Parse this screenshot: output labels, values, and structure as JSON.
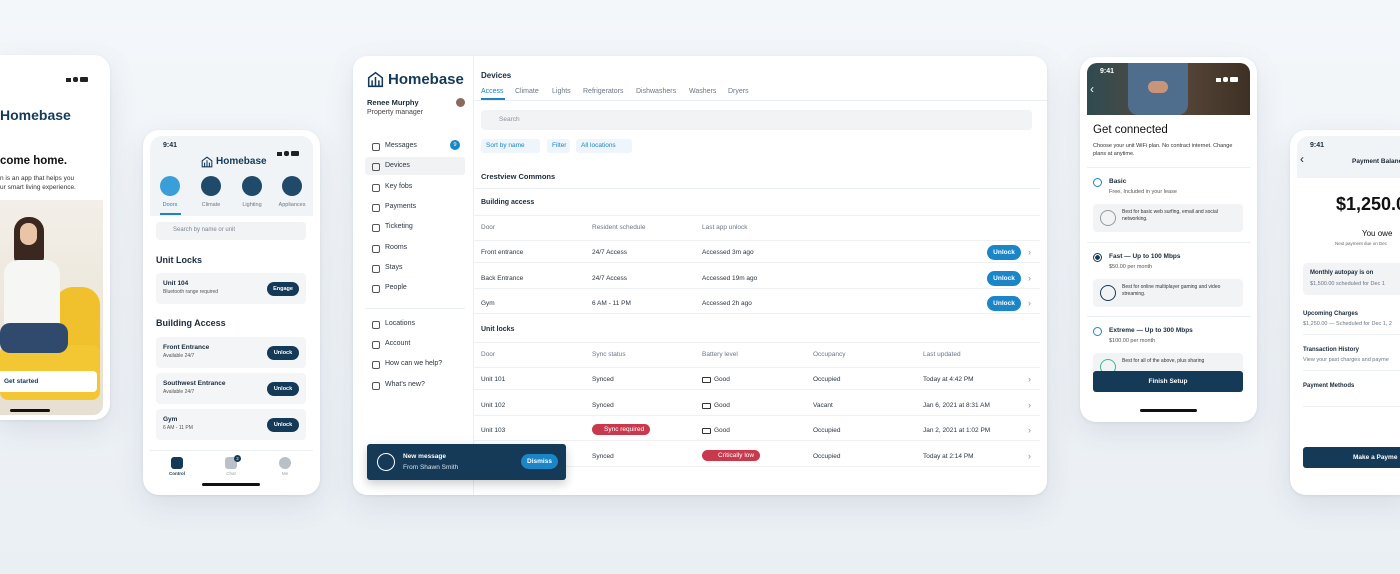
{
  "phone_intro": {
    "brand": "Homebase",
    "headline": "come home.",
    "body_lines": [
      "n is an app that helps you",
      "ur smart living experience."
    ],
    "cta": "Get started"
  },
  "phone_control": {
    "time": "9:41",
    "brand": "Homebase",
    "tabs": [
      "Doors",
      "Climate",
      "Lighting",
      "Appliances"
    ],
    "search": "Search by name or unit",
    "unit_locks_title": "Unit Locks",
    "unit_locks": [
      {
        "name": "Unit 104",
        "sub": "Bluetooth range required",
        "action": "Engage"
      }
    ],
    "building_title": "Building Access",
    "building": [
      {
        "name": "Front Entrance",
        "sub": "Available 24/7",
        "action": "Unlock"
      },
      {
        "name": "Southwest Entrance",
        "sub": "Available 24/7",
        "action": "Unlock"
      },
      {
        "name": "Gym",
        "sub": "6 AM - 11 PM",
        "action": "Unlock"
      }
    ],
    "nav": [
      "Control",
      "Chat",
      "Me"
    ],
    "chat_badge": 2
  },
  "dashboard": {
    "brand": "Homebase",
    "user": "Renee Murphy",
    "role": "Property manager",
    "nav_primary": [
      "Messages",
      "Devices",
      "Key fobs",
      "Payments",
      "Ticketing",
      "Rooms",
      "Stays",
      "People"
    ],
    "messages_badge": 9,
    "nav_secondary": [
      "Locations",
      "Account",
      "How can we help?",
      "What's new?"
    ],
    "toast": {
      "title": "New message",
      "sub": "From Shawn Smith",
      "action": "Dismiss"
    },
    "heading": "Devices",
    "tabs": [
      "Access",
      "Climate",
      "Lights",
      "Refrigerators",
      "Dishwashers",
      "Washers",
      "Dryers"
    ],
    "search": "Search",
    "filters": [
      "Sort by name",
      "Filter",
      "All locations"
    ],
    "property": "Crestview Commons",
    "building_access": {
      "title": "Building access",
      "columns": [
        "Door",
        "Resident schedule",
        "Last app unlock"
      ],
      "rows": [
        {
          "door": "Front entrance",
          "schedule": "24/7 Access",
          "last": "Accessed 3m ago",
          "action": "Unlock"
        },
        {
          "door": "Back Entrance",
          "schedule": "24/7 Access",
          "last": "Accessed 19m ago",
          "action": "Unlock"
        },
        {
          "door": "Gym",
          "schedule": "6 AM - 11 PM",
          "last": "Accessed 2h ago",
          "action": "Unlock"
        }
      ]
    },
    "unit_locks": {
      "title": "Unit locks",
      "columns": [
        "Door",
        "Sync status",
        "Battery level",
        "Occupancy",
        "Last updated"
      ],
      "rows": [
        {
          "door": "Unit 101",
          "sync": "Synced",
          "battery": "Good",
          "occupancy": "Occupied",
          "updated": "Today at 4:42 PM"
        },
        {
          "door": "Unit 102",
          "sync": "Synced",
          "battery": "Good",
          "occupancy": "Vacant",
          "updated": "Jan 6, 2021 at 8:31 AM"
        },
        {
          "door": "Unit 103",
          "sync": "Sync required",
          "sync_alert": true,
          "battery": "Good",
          "occupancy": "Occupied",
          "updated": "Jan 2, 2021 at 1:02 PM"
        },
        {
          "door": null,
          "sync": "Synced",
          "battery": "Critically low",
          "battery_alert": true,
          "occupancy": "Occupied",
          "updated": "Today at 2:14 PM"
        }
      ]
    }
  },
  "phone_wifi": {
    "time": "9:41",
    "title": "Get connected",
    "description": "Choose your unit WiFi plan. No contract internet. Change plans at anytime.",
    "plans": [
      {
        "name": "Basic",
        "price": "Free, Included in your lease",
        "detail": "Best for basic web surfing, email and social networking."
      },
      {
        "name": "Fast — Up to 100 Mbps",
        "price": "$50.00 per month",
        "detail": "Best for online multiplayer gaming and video streaming.",
        "selected": true
      },
      {
        "name": "Extreme — Up to 300 Mbps",
        "price": "$100.00 per month",
        "detail": "Best for all of the above, plus sharing"
      }
    ],
    "cta": "Finish Setup"
  },
  "phone_balance": {
    "time": "9:41",
    "title": "Payment Balanc",
    "amount": "$1,250.0",
    "owe": "You owe",
    "due": "Next payment due on Dec",
    "autopay": {
      "title": "Monthly autopay is on",
      "sub": "$1,500.00 scheduled for Dec 1"
    },
    "items": [
      {
        "title": "Upcoming Charges",
        "sub": "$1,250.00 — Scheduled for Dec 1, 2"
      },
      {
        "title": "Transaction History",
        "sub": "View your past charges and payme"
      },
      {
        "title": "Payment Methods"
      }
    ],
    "cta": "Make a Payme"
  }
}
